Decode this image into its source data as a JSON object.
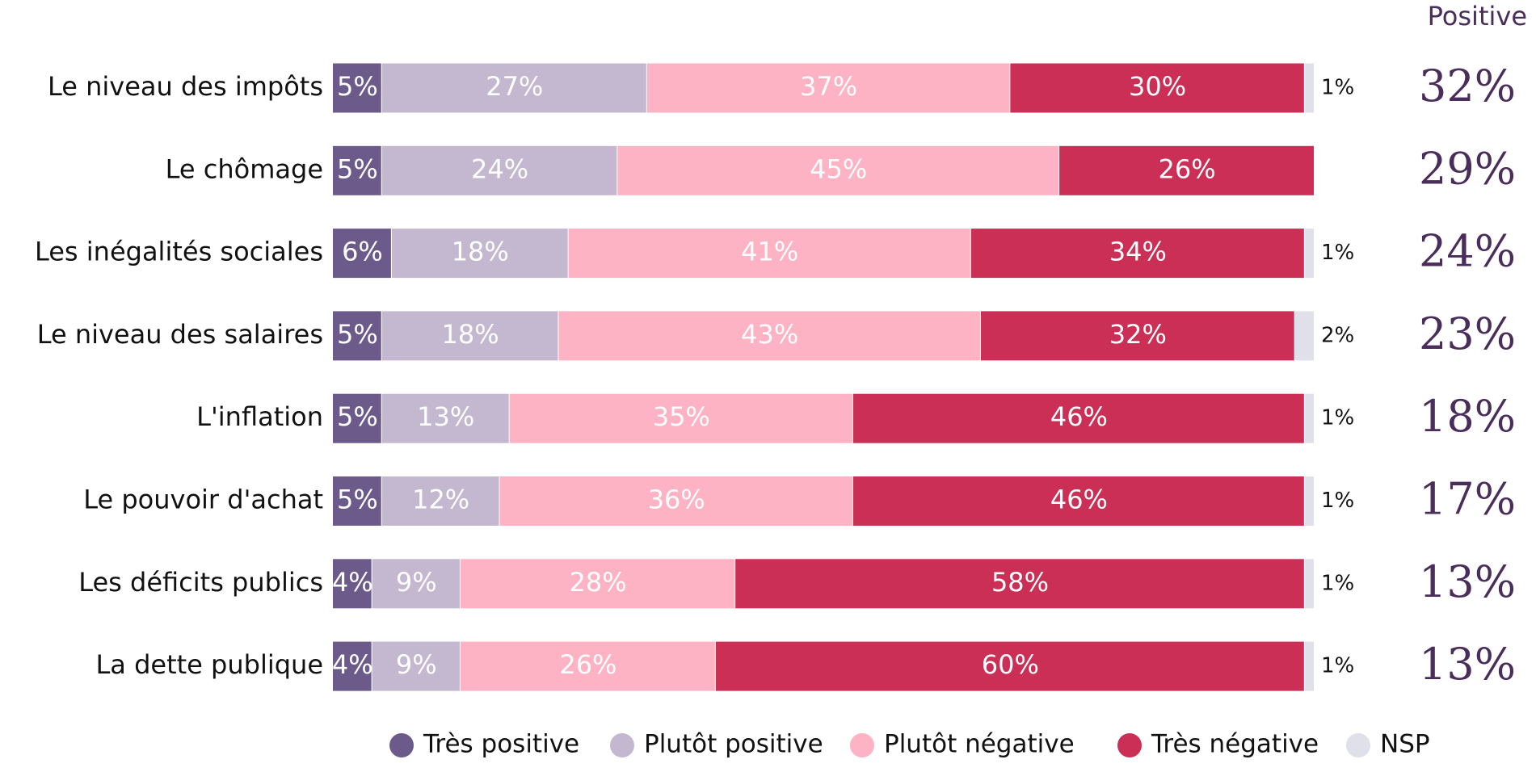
{
  "chart_data": {
    "type": "stacked-bar-horizontal",
    "categories": [
      "Le niveau des impôts",
      "Le chômage",
      "Les inégalités sociales",
      "Le niveau des salaires",
      "L'inflation",
      "Le pouvoir d'achat",
      "Les déficits publics",
      "La dette publique"
    ],
    "xlim": [
      0,
      100
    ],
    "series": [
      {
        "name": "Très positive",
        "color": "#6b5a8a",
        "values": [
          5,
          5,
          6,
          5,
          5,
          5,
          4,
          4
        ],
        "value_labels": [
          "5%",
          "5%",
          "6%",
          "5%",
          "5%",
          "5%",
          "4%",
          "4%"
        ]
      },
      {
        "name": "Plutôt positive",
        "color": "#c4b8d1",
        "values": [
          27,
          24,
          18,
          18,
          13,
          12,
          9,
          9
        ],
        "value_labels": [
          "27%",
          "24%",
          "18%",
          "18%",
          "13%",
          "12%",
          "9%",
          "9%"
        ]
      },
      {
        "name": "Plutôt négative",
        "color": "#fdb3c4",
        "values": [
          37,
          45,
          41,
          43,
          35,
          36,
          28,
          26
        ],
        "value_labels": [
          "37%",
          "45%",
          "41%",
          "43%",
          "35%",
          "36%",
          "28%",
          "26%"
        ]
      },
      {
        "name": "Très négative",
        "color": "#cc2f56",
        "values": [
          30,
          26,
          34,
          32,
          46,
          46,
          58,
          60
        ],
        "value_labels": [
          "30%",
          "26%",
          "34%",
          "32%",
          "46%",
          "46%",
          "58%",
          "60%"
        ]
      },
      {
        "name": "NSP",
        "color": "#dfe0ea",
        "values": [
          1,
          null,
          1,
          2,
          1,
          1,
          1,
          1
        ],
        "value_labels": [
          "1%",
          null,
          "1%",
          "2%",
          "1%",
          "1%",
          "1%",
          "1%"
        ]
      }
    ],
    "positive": {
      "title": "Positive",
      "values": [
        32,
        29,
        24,
        23,
        18,
        17,
        13,
        13
      ],
      "value_labels": [
        "32%",
        "29%",
        "24%",
        "23%",
        "18%",
        "17%",
        "13%",
        "13%"
      ]
    }
  }
}
